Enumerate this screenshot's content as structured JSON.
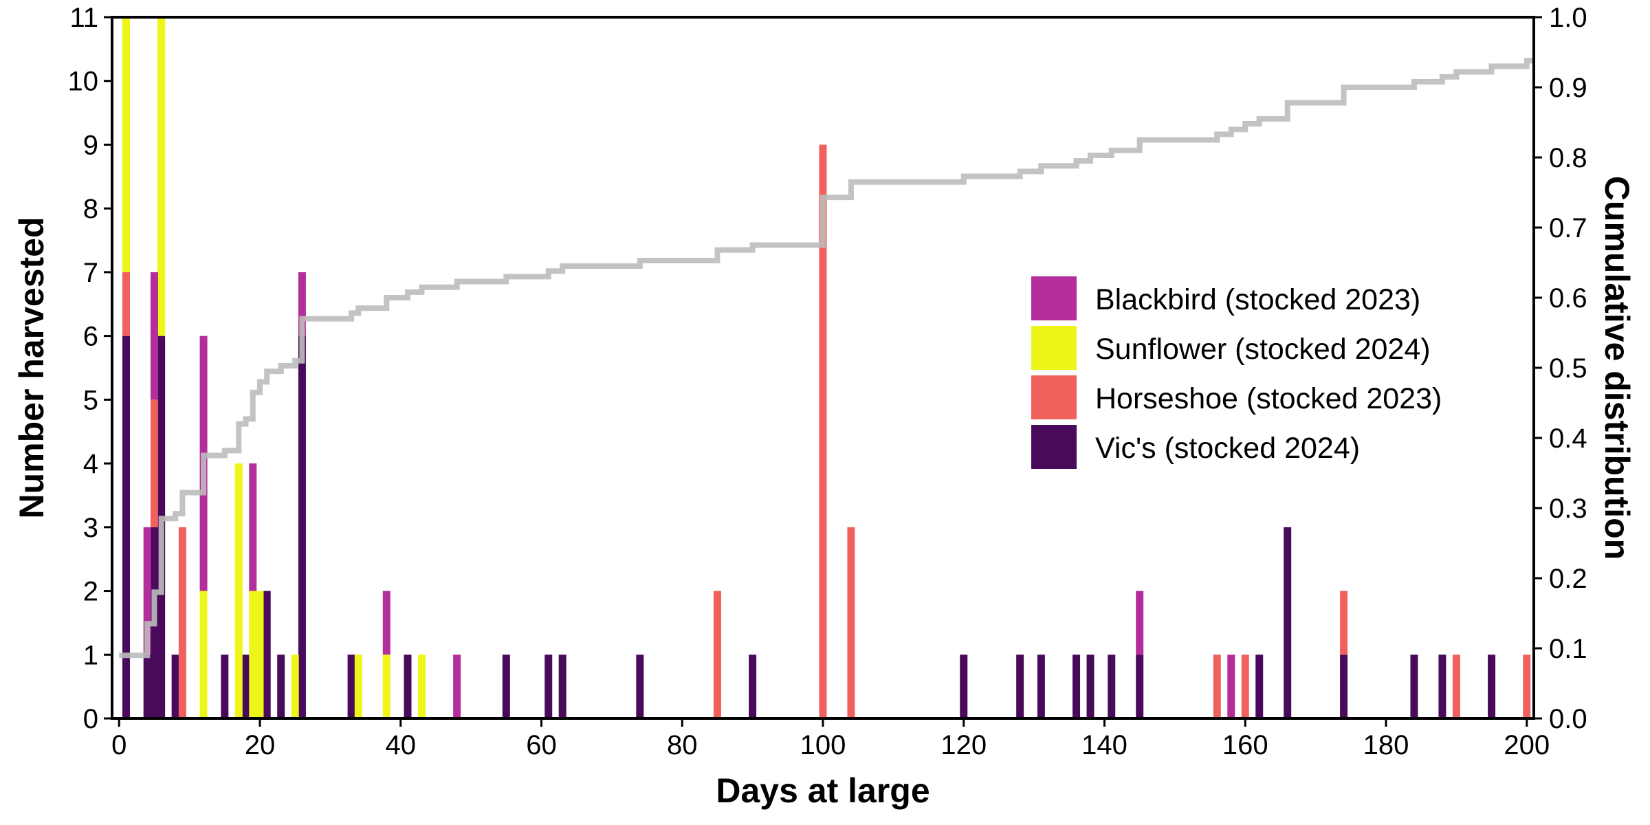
{
  "chart_data": {
    "type": "bar",
    "stacked": true,
    "xlabel": "Days at large",
    "ylabel": "Number harvested",
    "y2label": "Cumulative distribution",
    "xlim": [
      -1,
      201
    ],
    "ylim": [
      0,
      11
    ],
    "y2lim": [
      0,
      1.0
    ],
    "xticks": [
      "0",
      "20",
      "40",
      "60",
      "80",
      "100",
      "120",
      "140",
      "160",
      "180",
      "200"
    ],
    "yticks": [
      "0",
      "1",
      "2",
      "3",
      "4",
      "5",
      "6",
      "7",
      "8",
      "9",
      "10",
      "11"
    ],
    "y2ticks": [
      "0.0",
      "0.1",
      "0.2",
      "0.3",
      "0.4",
      "0.5",
      "0.6",
      "0.7",
      "0.8",
      "0.9",
      "1.0"
    ],
    "grid": false,
    "legend_position": "center-right",
    "series": [
      {
        "name": "Vic's (stocked 2024)",
        "color": "#4a0a5c",
        "points": [
          [
            1,
            6
          ],
          [
            4,
            1
          ],
          [
            5,
            3
          ],
          [
            6,
            6
          ],
          [
            8,
            1
          ],
          [
            15,
            1
          ],
          [
            18,
            1
          ],
          [
            21,
            2
          ],
          [
            23,
            1
          ],
          [
            26,
            6
          ],
          [
            33,
            1
          ],
          [
            41,
            1
          ],
          [
            55,
            1
          ],
          [
            61,
            1
          ],
          [
            63,
            1
          ],
          [
            74,
            1
          ],
          [
            90,
            1
          ],
          [
            120,
            1
          ],
          [
            128,
            1
          ],
          [
            131,
            1
          ],
          [
            136,
            1
          ],
          [
            138,
            1
          ],
          [
            141,
            1
          ],
          [
            145,
            1
          ],
          [
            162,
            1
          ],
          [
            166,
            3
          ],
          [
            174,
            1
          ],
          [
            184,
            1
          ],
          [
            188,
            1
          ],
          [
            195,
            1
          ]
        ]
      },
      {
        "name": "Horseshoe (stocked 2023)",
        "color": "#f0605d",
        "points": [
          [
            1,
            1
          ],
          [
            5,
            2
          ],
          [
            9,
            3
          ],
          [
            85,
            2
          ],
          [
            100,
            9
          ],
          [
            104,
            3
          ],
          [
            156,
            1
          ],
          [
            160,
            1
          ],
          [
            174,
            1
          ],
          [
            190,
            1
          ],
          [
            200,
            1
          ]
        ]
      },
      {
        "name": "Sunflower (stocked 2024)",
        "color": "#eef519",
        "points": [
          [
            1,
            4
          ],
          [
            6,
            5
          ],
          [
            12,
            2
          ],
          [
            17,
            4
          ],
          [
            19,
            2
          ],
          [
            20,
            2
          ],
          [
            25,
            1
          ],
          [
            34,
            1
          ],
          [
            38,
            1
          ],
          [
            43,
            1
          ]
        ]
      },
      {
        "name": "Blackbird (stocked 2023)",
        "color": "#b42e9b",
        "points": [
          [
            4,
            2
          ],
          [
            5,
            2
          ],
          [
            12,
            4
          ],
          [
            19,
            2
          ],
          [
            26,
            1
          ],
          [
            38,
            1
          ],
          [
            48,
            1
          ],
          [
            145,
            1
          ],
          [
            158,
            1
          ]
        ]
      }
    ],
    "cumulative": {
      "color": "#bdbdbd",
      "steps": [
        [
          0,
          0.09
        ],
        [
          4,
          0.135
        ],
        [
          5,
          0.18
        ],
        [
          6,
          0.285
        ],
        [
          8,
          0.292
        ],
        [
          9,
          0.322
        ],
        [
          12,
          0.375
        ],
        [
          15,
          0.382
        ],
        [
          17,
          0.42
        ],
        [
          18,
          0.427
        ],
        [
          19,
          0.465
        ],
        [
          20,
          0.48
        ],
        [
          21,
          0.495
        ],
        [
          23,
          0.503
        ],
        [
          25,
          0.51
        ],
        [
          26,
          0.57
        ],
        [
          33,
          0.578
        ],
        [
          34,
          0.585
        ],
        [
          38,
          0.6
        ],
        [
          41,
          0.608
        ],
        [
          43,
          0.615
        ],
        [
          48,
          0.623
        ],
        [
          55,
          0.63
        ],
        [
          61,
          0.638
        ],
        [
          63,
          0.645
        ],
        [
          74,
          0.653
        ],
        [
          85,
          0.668
        ],
        [
          90,
          0.675
        ],
        [
          100,
          0.743
        ],
        [
          104,
          0.765
        ],
        [
          120,
          0.773
        ],
        [
          128,
          0.78
        ],
        [
          131,
          0.788
        ],
        [
          136,
          0.795
        ],
        [
          138,
          0.803
        ],
        [
          141,
          0.81
        ],
        [
          145,
          0.825
        ],
        [
          156,
          0.833
        ],
        [
          158,
          0.84
        ],
        [
          160,
          0.848
        ],
        [
          162,
          0.855
        ],
        [
          166,
          0.878
        ],
        [
          174,
          0.9
        ],
        [
          184,
          0.908
        ],
        [
          188,
          0.915
        ],
        [
          190,
          0.922
        ],
        [
          195,
          0.93
        ],
        [
          200,
          0.938
        ],
        [
          201,
          0.938
        ]
      ]
    }
  },
  "legend": {
    "items": [
      {
        "label": "Blackbird (stocked 2023)",
        "color": "#b42e9b"
      },
      {
        "label": "Sunflower (stocked 2024)",
        "color": "#eef519"
      },
      {
        "label": "Horseshoe (stocked 2023)",
        "color": "#f0605d"
      },
      {
        "label": "Vic's (stocked 2024)",
        "color": "#4a0a5c"
      }
    ]
  }
}
